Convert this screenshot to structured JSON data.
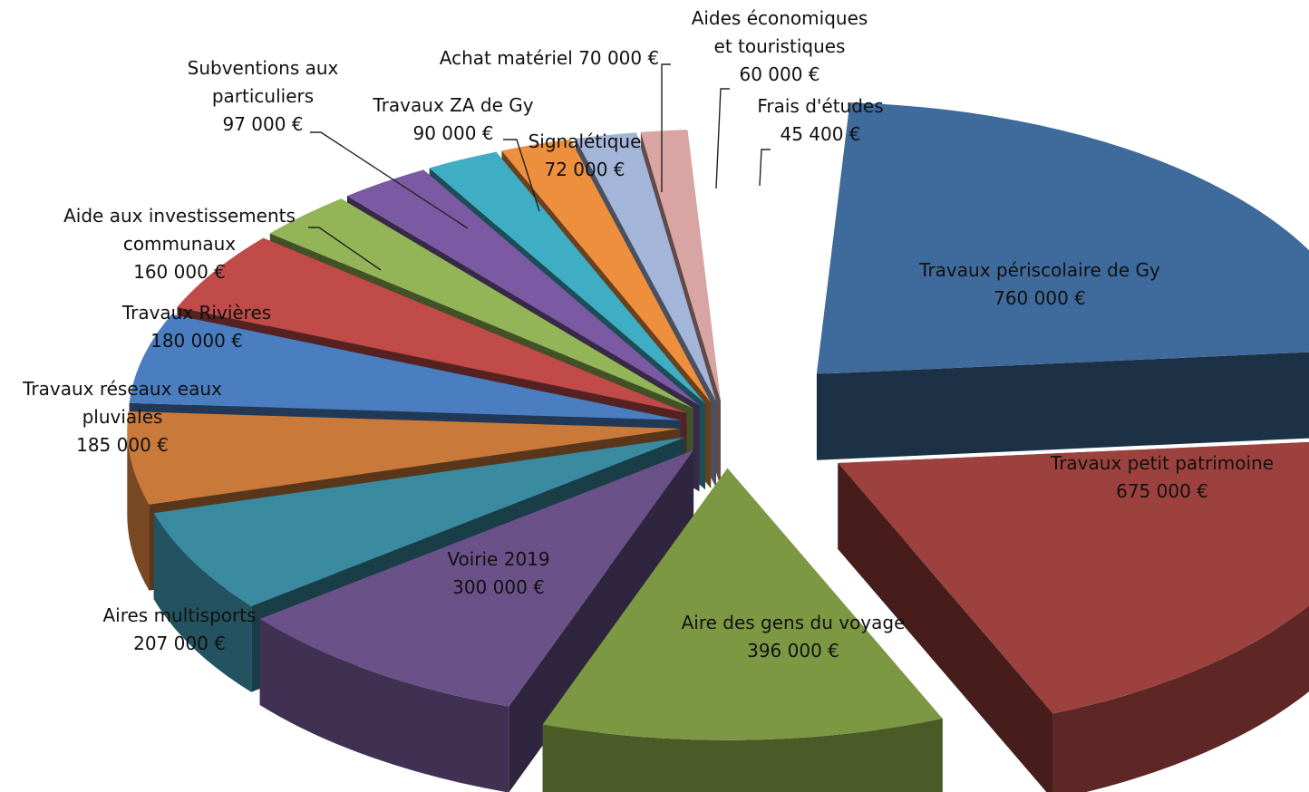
{
  "chart_data": {
    "type": "pie",
    "title": "",
    "exploded": true,
    "three_d": true,
    "unit": "€",
    "slices": [
      {
        "label": "Travaux périscolaire de Gy",
        "value_text": "760 000 €",
        "value": 760000,
        "color": "#3f6a9c"
      },
      {
        "label": "Travaux petit patrimoine",
        "value_text": "675 000 €",
        "value": 675000,
        "color": "#9d413e"
      },
      {
        "label": "Aire des gens du voyage",
        "value_text": "396 000 €",
        "value": 396000,
        "color": "#7d9843"
      },
      {
        "label": "Voirie 2019",
        "value_text": "300 000 €",
        "value": 300000,
        "color": "#6a5289"
      },
      {
        "label": "Aires multisports",
        "value_text": "207 000 €",
        "value": 207000,
        "color": "#3a8aa0"
      },
      {
        "label": "Travaux réseaux eaux pluviales",
        "value_text": "185 000 €",
        "value": 185000,
        "color": "#c97a3a"
      },
      {
        "label": "Travaux Rivières",
        "value_text": "180 000 €",
        "value": 180000,
        "color": "#4a7ec0"
      },
      {
        "label": "Aide aux investissements communaux",
        "value_text": "160 000 €",
        "value": 160000,
        "color": "#c04b49"
      },
      {
        "label": "Subventions aux particuliers",
        "value_text": "97 000 €",
        "value": 97000,
        "color": "#93b457"
      },
      {
        "label": "Travaux ZA de Gy",
        "value_text": "90 000 €",
        "value": 90000,
        "color": "#7c5aa3"
      },
      {
        "label": "Signalétique",
        "value_text": "72 000 €",
        "value": 72000,
        "color": "#3fadc4"
      },
      {
        "label": "Achat matériel",
        "value_text": "70 000 €",
        "value": 70000,
        "color": "#ee8f3e"
      },
      {
        "label": "Aides économiques et touristiques",
        "value_text": "60 000 €",
        "value": 60000,
        "color": "#a3b5d8"
      },
      {
        "label": "Frais d'études",
        "value_text": "45 400 €",
        "value": 45400,
        "color": "#d8a5a3"
      }
    ]
  }
}
